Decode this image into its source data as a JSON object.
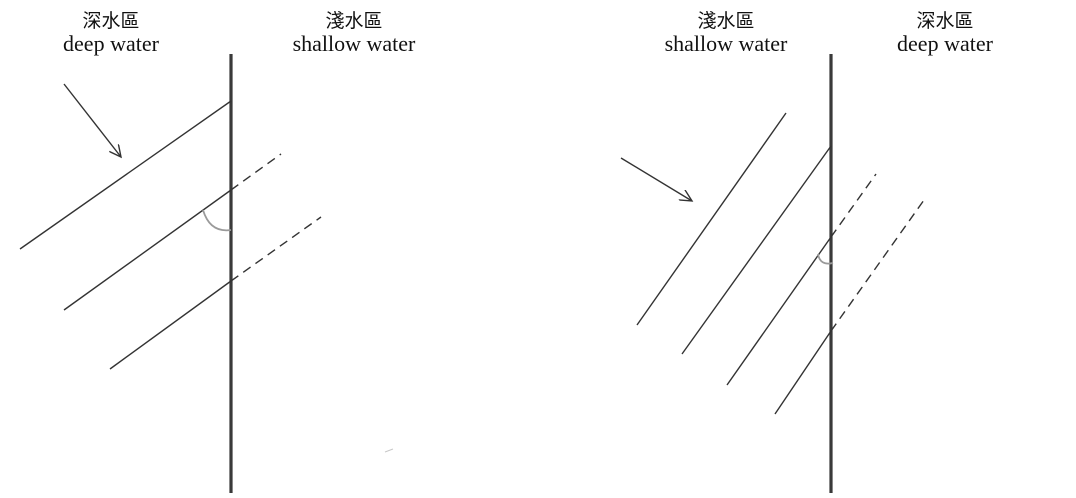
{
  "left_diagram": {
    "left_label": {
      "zh": "深水區",
      "en": "deep water"
    },
    "right_label": {
      "zh": "淺水區",
      "en": "shallow water"
    }
  },
  "right_diagram": {
    "left_label": {
      "zh": "淺水區",
      "en": "shallow water"
    },
    "right_label": {
      "zh": "深水區",
      "en": "deep water"
    }
  },
  "colors": {
    "line": "#333333",
    "boundary": "#3a3a3a",
    "angle_arc": "#9a9a9a"
  }
}
